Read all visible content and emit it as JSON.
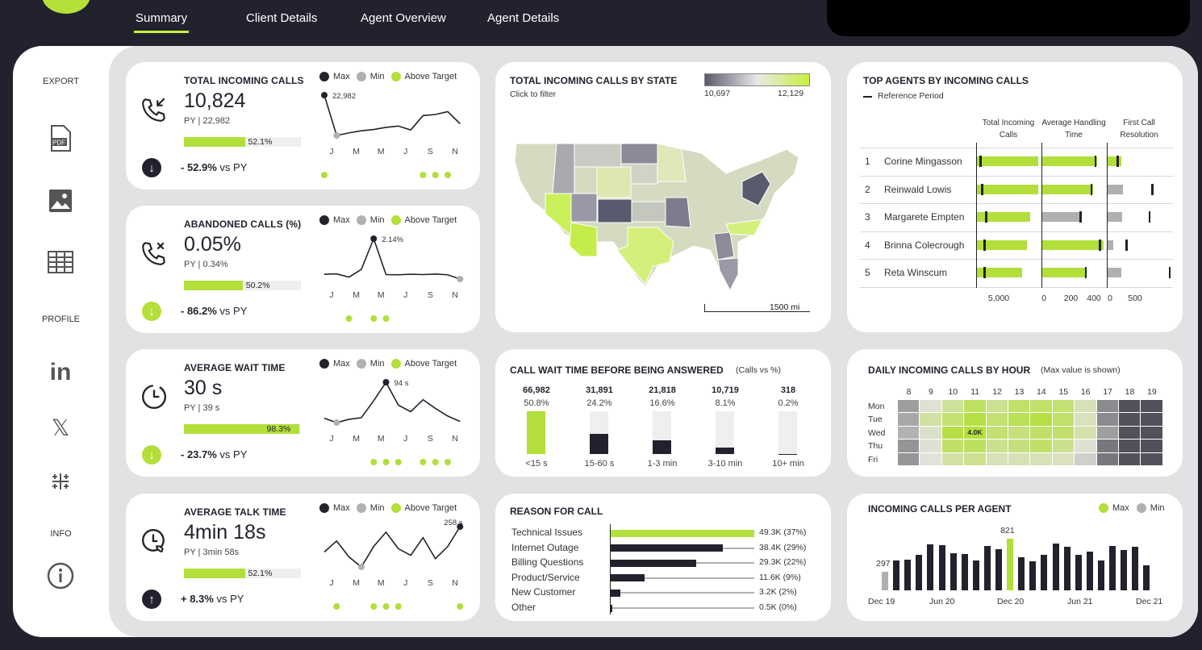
{
  "nav": {
    "tabs": [
      "Summary",
      "Client Details",
      "Agent Overview",
      "Agent Details"
    ],
    "active": "Summary"
  },
  "sidebar": {
    "export_label": "EXPORT",
    "profile_label": "PROFILE",
    "info_label": "INFO",
    "pdf_text": "PDF"
  },
  "colors": {
    "accent": "#b2df3a",
    "dark": "#22222e",
    "min": "#b0b0b0",
    "background": "#e2e2e4"
  },
  "months_shown": [
    "J",
    "M",
    "M",
    "J",
    "S",
    "N"
  ],
  "legend": {
    "max": "Max",
    "min": "Min",
    "above": "Above Target"
  },
  "kpis": [
    {
      "title": "TOTAL INCOMING CALLS",
      "icon": "phone-incoming-icon",
      "value": "10,824",
      "py": "PY  |  22,982",
      "progress": 52.1,
      "progress_label": "52.1%",
      "change": "- 52.9%",
      "change_suffix": " vs PY",
      "direction": "down",
      "arrow_color": "#22222e",
      "max_label": "22,982",
      "series": [
        22982,
        7600,
        8600,
        9400,
        9900,
        10700,
        11200,
        9700,
        15200,
        15600,
        16700,
        12100
      ],
      "above_target": [
        0,
        8,
        9,
        10
      ]
    },
    {
      "title": "ABANDONED CALLS (%)",
      "icon": "phone-missed-icon",
      "value": "0.05%",
      "py": "PY  |  0.34%",
      "progress": 50.2,
      "progress_label": "50.2%",
      "change": "- 86.2%",
      "change_suffix": " vs PY",
      "direction": "down",
      "arrow_color": "#b2df3a",
      "max_label": "2.14%",
      "series": [
        0.3,
        0.32,
        0.15,
        0.55,
        2.14,
        0.28,
        0.27,
        0.3,
        0.28,
        0.31,
        0.27,
        0.05
      ],
      "above_target": [
        2,
        4,
        5
      ]
    },
    {
      "title": "AVERAGE WAIT TIME",
      "icon": "clock-icon",
      "value": "30 s",
      "py": "PY  |  39 s",
      "progress": 98.3,
      "progress_label": "98.3%",
      "change": "- 23.7%",
      "change_suffix": " vs PY",
      "direction": "down",
      "arrow_color": "#b2df3a",
      "max_label": "94 s",
      "series": [
        28,
        20,
        26,
        29,
        60,
        94,
        52,
        40,
        62,
        46,
        32,
        22
      ],
      "above_target": [
        4,
        5,
        6,
        8,
        9,
        10
      ]
    },
    {
      "title": "AVERAGE TALK TIME",
      "icon": "clock-phone-icon",
      "value": "4min 18s",
      "py": "PY  |  3min 58s",
      "progress": 52.1,
      "progress_label": "52.1%",
      "change": "+ 8.3%",
      "change_suffix": " vs PY",
      "direction": "up",
      "arrow_color": "#22222e",
      "max_label": "258 s",
      "series": [
        212,
        232,
        203,
        185,
        222,
        248,
        218,
        206,
        238,
        200,
        222,
        258
      ],
      "above_target": [
        1,
        4,
        5,
        6,
        11
      ]
    }
  ],
  "map": {
    "title": "TOTAL INCOMING CALLS BY STATE",
    "subtitle": "Click to filter",
    "legend_min": "10,697",
    "legend_max": "12,129",
    "scale_label": "1500 mi"
  },
  "wait": {
    "title": "CALL WAIT TIME BEFORE BEING ANSWERED",
    "subtitle": "(Calls vs %)",
    "items": [
      {
        "count": "66,982",
        "pct": 50.8,
        "pct_label": "50.8%",
        "label": "<15 s"
      },
      {
        "count": "31,891",
        "pct": 24.2,
        "pct_label": "24.2%",
        "label": "15-60 s"
      },
      {
        "count": "21,818",
        "pct": 16.6,
        "pct_label": "16.6%",
        "label": "1-3 min"
      },
      {
        "count": "10,719",
        "pct": 8.1,
        "pct_label": "8.1%",
        "label": "3-10 min"
      },
      {
        "count": "318",
        "pct": 0.2,
        "pct_label": "0.2%",
        "label": "10+ min"
      }
    ]
  },
  "reason": {
    "title": "REASON FOR CALL",
    "items": [
      {
        "label": "Technical Issues",
        "value": 49.3,
        "text": "49.3K (37%)"
      },
      {
        "label": "Internet Outage",
        "value": 38.4,
        "text": "38.4K (29%)"
      },
      {
        "label": "Billing Questions",
        "value": 29.3,
        "text": "29.3K (22%)"
      },
      {
        "label": "Product/Service",
        "value": 11.6,
        "text": "11.6K (9%)"
      },
      {
        "label": "New Customer",
        "value": 3.2,
        "text": "3.2K (2%)"
      },
      {
        "label": "Other",
        "value": 0.5,
        "text": "0.5K (0%)"
      }
    ]
  },
  "agents": {
    "title": "TOP AGENTS BY INCOMING CALLS",
    "reference_label": "Reference Period",
    "headers": [
      "Total Incoming Calls",
      "Average Handling Time",
      "First Call Resolution"
    ],
    "ticks": {
      "calls": [
        "5,000"
      ],
      "aht": [
        "0",
        "200",
        "400"
      ],
      "fcr": [
        "0",
        "500"
      ]
    },
    "rows": [
      {
        "rank": "1",
        "name": "Corine Mingasson",
        "calls": 6750,
        "calls_ref": 4180,
        "aht": 406,
        "aht_ref": 394,
        "aht_hi": true,
        "fcr": 257,
        "fcr_ref": 186,
        "fcr_hi": true
      },
      {
        "rank": "2",
        "name": "Reinwald Lowis",
        "calls": 6750,
        "calls_ref": 4250,
        "aht": 376,
        "aht_ref": 364,
        "aht_hi": true,
        "fcr": 286,
        "fcr_ref": 800,
        "fcr_hi": false
      },
      {
        "rank": "3",
        "name": "Margarete Empten",
        "calls": 6390,
        "calls_ref": 4430,
        "aht": 281,
        "aht_ref": 281,
        "aht_hi": false,
        "fcr": 271,
        "fcr_ref": 757,
        "fcr_hi": false
      },
      {
        "rank": "4",
        "name": "Brinna Colecrough",
        "calls": 6250,
        "calls_ref": 4360,
        "aht": 454,
        "aht_ref": 424,
        "aht_hi": true,
        "fcr": 114,
        "fcr_ref": 343,
        "fcr_hi": false
      },
      {
        "rank": "5",
        "name": "Reta Winscum",
        "calls": 6040,
        "calls_ref": 4360,
        "aht": 322,
        "aht_ref": 322,
        "aht_hi": true,
        "fcr": 257,
        "fcr_ref": 1114,
        "fcr_hi": false
      }
    ]
  },
  "heatmap": {
    "title": "DAILY INCOMING CALLS BY HOUR",
    "subtitle": "(Max value is shown)",
    "hours": [
      "8",
      "9",
      "10",
      "11",
      "12",
      "13",
      "14",
      "15",
      "16",
      "17",
      "18",
      "19"
    ],
    "days": [
      "Mon",
      "Tue",
      "Wed",
      "Thu",
      "Fri"
    ],
    "max_label": "4.0K",
    "values": [
      [
        1500,
        2300,
        2900,
        3500,
        3000,
        3400,
        3400,
        3300,
        2600,
        1300,
        700,
        700
      ],
      [
        1600,
        2800,
        3300,
        3800,
        3300,
        3600,
        3800,
        3400,
        2500,
        1300,
        700,
        700
      ],
      [
        1700,
        2400,
        3800,
        4000,
        3300,
        3200,
        3400,
        3400,
        2700,
        1500,
        700,
        700
      ],
      [
        1400,
        2300,
        3400,
        3500,
        3000,
        3200,
        3400,
        3000,
        2300,
        1100,
        700,
        700
      ],
      [
        1400,
        2200,
        2800,
        3000,
        2600,
        2600,
        2600,
        2500,
        2000,
        1100,
        700,
        700
      ]
    ]
  },
  "per_agent": {
    "title": "INCOMING CALLS PER AGENT",
    "legend_max": "Max",
    "legend_min": "Min",
    "max_label": "821",
    "min_label": "297",
    "values": [
      297,
      470,
      483,
      564,
      726,
      714,
      585,
      573,
      470,
      701,
      650,
      821,
      521,
      457,
      564,
      739,
      692,
      564,
      611,
      470,
      701,
      637,
      692,
      393
    ],
    "x_labels": [
      "Dec 19",
      "Jun 20",
      "Dec 20",
      "Jun 21",
      "Dec 21"
    ]
  }
}
